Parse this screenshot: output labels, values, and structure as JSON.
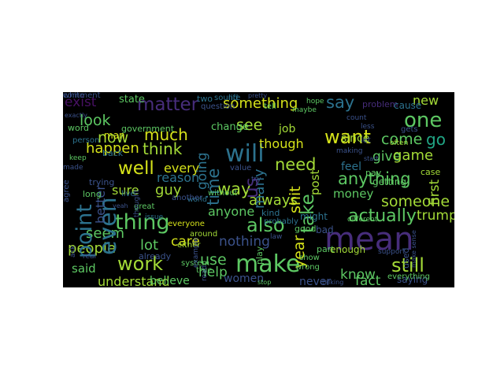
{
  "palette": {
    "yellow": "#d5e21a",
    "lime": "#a3da37",
    "green": "#5dc863",
    "teal": "#21a685",
    "aqua": "#1f9a8a",
    "steel": "#2c728e",
    "blue": "#3b528b",
    "indigo": "#472d7b",
    "purple": "#471163"
  },
  "words": [
    {
      "text": "exist",
      "color": "purple"
    },
    {
      "text": "matter",
      "color": "indigo"
    },
    {
      "text": "something",
      "color": "yellow"
    },
    {
      "text": "say",
      "color": "steel"
    },
    {
      "text": "new",
      "color": "lime"
    },
    {
      "text": "one",
      "color": "green"
    },
    {
      "text": "look",
      "color": "green"
    },
    {
      "text": "problem",
      "color": "indigo"
    },
    {
      "text": "now",
      "color": "lime"
    },
    {
      "text": "much",
      "color": "yellow"
    },
    {
      "text": "see",
      "color": "lime"
    },
    {
      "text": "want",
      "color": "yellow"
    },
    {
      "text": "will",
      "color": "steel"
    },
    {
      "text": "come",
      "color": "green"
    },
    {
      "text": "go",
      "color": "teal"
    },
    {
      "text": "happen",
      "color": "yellow"
    },
    {
      "text": "think",
      "color": "lime"
    },
    {
      "text": "though",
      "color": "yellow"
    },
    {
      "text": "well",
      "color": "yellow"
    },
    {
      "text": "every",
      "color": "yellow"
    },
    {
      "text": "need",
      "color": "lime"
    },
    {
      "text": "give",
      "color": "green"
    },
    {
      "text": "game",
      "color": "lime"
    },
    {
      "text": "reason",
      "color": "steel"
    },
    {
      "text": "anything",
      "color": "green"
    },
    {
      "text": "sure",
      "color": "lime"
    },
    {
      "text": "guy",
      "color": "lime"
    },
    {
      "text": "way",
      "color": "lime"
    },
    {
      "text": "always",
      "color": "lime"
    },
    {
      "text": "money",
      "color": "green"
    },
    {
      "text": "someone",
      "color": "lime"
    },
    {
      "text": "thing",
      "color": "green"
    },
    {
      "text": "also",
      "color": "green"
    },
    {
      "text": "actually",
      "color": "green"
    },
    {
      "text": "seem",
      "color": "green"
    },
    {
      "text": "anyone",
      "color": "green"
    },
    {
      "text": "trump",
      "color": "lime"
    },
    {
      "text": "mean",
      "color": "indigo"
    },
    {
      "text": "people",
      "color": "lime"
    },
    {
      "text": "lot",
      "color": "green"
    },
    {
      "text": "care",
      "color": "yellow"
    },
    {
      "text": "nothing",
      "color": "blue"
    },
    {
      "text": "work",
      "color": "lime"
    },
    {
      "text": "make",
      "color": "green"
    },
    {
      "text": "use",
      "color": "green"
    },
    {
      "text": "still",
      "color": "lime"
    },
    {
      "text": "said",
      "color": "green"
    },
    {
      "text": "help",
      "color": "green"
    },
    {
      "text": "know",
      "color": "green"
    },
    {
      "text": "fact",
      "color": "green"
    },
    {
      "text": "understand",
      "color": "lime"
    },
    {
      "text": "believe",
      "color": "green"
    },
    {
      "text": "women",
      "color": "blue"
    },
    {
      "text": "never",
      "color": "blue"
    },
    {
      "text": "saying",
      "color": "blue"
    },
    {
      "text": "even",
      "color": "steel"
    },
    {
      "text": "point",
      "color": "steel"
    },
    {
      "text": "time",
      "color": "steel"
    },
    {
      "text": "going",
      "color": "steel"
    },
    {
      "text": "take",
      "color": "green"
    },
    {
      "text": "year",
      "color": "yellow"
    },
    {
      "text": "shit",
      "color": "yellow"
    },
    {
      "text": "better",
      "color": "blue"
    },
    {
      "text": "first",
      "color": "lime"
    },
    {
      "text": "many",
      "color": "steel"
    },
    {
      "text": "us",
      "color": "indigo"
    },
    {
      "text": "state",
      "color": "green"
    },
    {
      "text": "man",
      "color": "yellow"
    },
    {
      "text": "change",
      "color": "green"
    },
    {
      "text": "government",
      "color": "green"
    },
    {
      "text": "job",
      "color": "lime"
    },
    {
      "text": "since",
      "color": "lime"
    },
    {
      "text": "feel",
      "color": "steel"
    },
    {
      "text": "post",
      "color": "lime"
    },
    {
      "text": "case",
      "color": "lime"
    },
    {
      "text": "question",
      "color": "blue"
    },
    {
      "text": "two",
      "color": "steel"
    },
    {
      "text": "life",
      "color": "steel"
    },
    {
      "text": "sound",
      "color": "steel"
    },
    {
      "text": "tell",
      "color": "green"
    },
    {
      "text": "hope",
      "color": "green"
    },
    {
      "text": "maybe",
      "color": "green"
    },
    {
      "text": "word",
      "color": "green"
    },
    {
      "text": "person",
      "color": "steel"
    },
    {
      "text": "back",
      "color": "steel"
    },
    {
      "text": "trying",
      "color": "blue"
    },
    {
      "text": "long",
      "color": "green"
    },
    {
      "text": "made",
      "color": "blue"
    },
    {
      "text": "keep",
      "color": "green"
    },
    {
      "text": "live",
      "color": "steel"
    },
    {
      "text": "great",
      "color": "green"
    },
    {
      "text": "everyone",
      "color": "yellow"
    },
    {
      "text": "kind",
      "color": "steel"
    },
    {
      "text": "might",
      "color": "steel"
    },
    {
      "text": "good",
      "color": "green"
    },
    {
      "text": "bad",
      "color": "blue"
    },
    {
      "text": "pay",
      "color": "green"
    },
    {
      "text": "getting",
      "color": "green"
    },
    {
      "text": "different",
      "color": "green"
    },
    {
      "text": "part",
      "color": "green"
    },
    {
      "text": "enough",
      "color": "lime"
    },
    {
      "text": "show",
      "color": "green"
    },
    {
      "text": "wrong",
      "color": "green"
    },
    {
      "text": "play",
      "color": "green"
    },
    {
      "text": "already",
      "color": "blue"
    },
    {
      "text": "either",
      "color": "lime"
    },
    {
      "text": "around",
      "color": "lime"
    },
    {
      "text": "without",
      "color": "green"
    },
    {
      "text": "world",
      "color": "steel"
    },
    {
      "text": "true",
      "color": "green"
    },
    {
      "text": "system",
      "color": "green"
    },
    {
      "text": "stop",
      "color": "green"
    },
    {
      "text": "used",
      "color": "blue"
    },
    {
      "text": "everything",
      "color": "green"
    },
    {
      "text": "law",
      "color": "blue"
    },
    {
      "text": "probably",
      "color": "steel"
    },
    {
      "text": "issue",
      "color": "steel"
    },
    {
      "text": "another",
      "color": "blue"
    },
    {
      "text": "ask",
      "color": "blue"
    },
    {
      "text": "real",
      "color": "blue"
    },
    {
      "text": "thought",
      "color": "blue"
    },
    {
      "text": "gets",
      "color": "blue"
    },
    {
      "text": "often",
      "color": "lime"
    },
    {
      "text": "cause",
      "color": "steel"
    },
    {
      "text": "count",
      "color": "blue"
    },
    {
      "text": "making",
      "color": "blue"
    },
    {
      "text": "let",
      "color": "blue"
    },
    {
      "text": "try",
      "color": "blue"
    },
    {
      "text": "value",
      "color": "blue"
    },
    {
      "text": "agree",
      "color": "blue"
    },
    {
      "text": "read",
      "color": "blue"
    },
    {
      "text": "example",
      "color": "blue"
    },
    {
      "text": "talking",
      "color": "blue"
    },
    {
      "text": "support",
      "color": "blue"
    },
    {
      "text": "make sense",
      "color": "blue"
    },
    {
      "text": "exactly",
      "color": "blue"
    },
    {
      "text": "pretty",
      "color": "blue"
    },
    {
      "text": "less",
      "color": "blue"
    },
    {
      "text": "start",
      "color": "blue"
    },
    {
      "text": "yeah",
      "color": "blue"
    },
    {
      "text": "comment",
      "color": "blue"
    },
    {
      "text": "white",
      "color": "blue"
    }
  ]
}
